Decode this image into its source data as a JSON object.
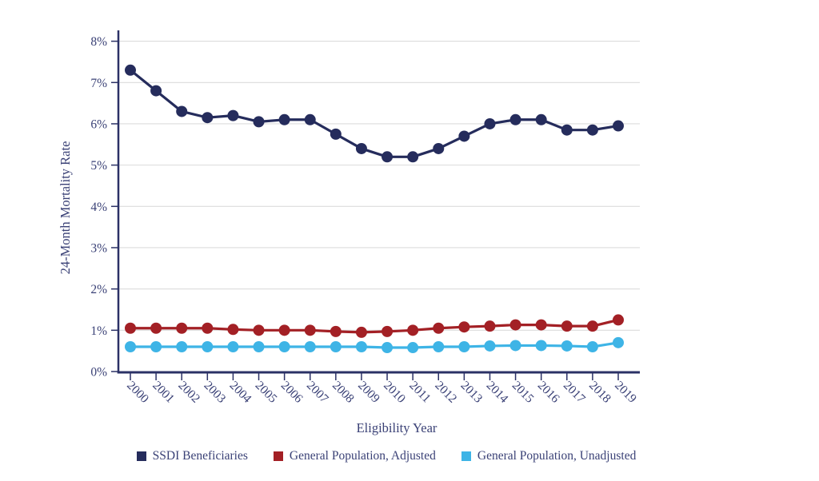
{
  "chart_data": {
    "type": "line",
    "title": "",
    "xlabel": "Eligibility Year",
    "ylabel": "24-Month Mortality Rate",
    "x": [
      "2000",
      "2001",
      "2002",
      "2003",
      "2004",
      "2005",
      "2006",
      "2007",
      "2008",
      "2009",
      "2010",
      "2011",
      "2012",
      "2013",
      "2014",
      "2015",
      "2016",
      "2017",
      "2018",
      "2019"
    ],
    "series": [
      {
        "name": "SSDI Beneficiaries",
        "color": "#252c5c",
        "values": [
          7.3,
          6.8,
          6.3,
          6.15,
          6.2,
          6.05,
          6.1,
          6.1,
          5.75,
          5.4,
          5.2,
          5.2,
          5.4,
          5.7,
          6.0,
          6.1,
          6.1,
          5.85,
          5.85,
          5.95
        ]
      },
      {
        "name": "General Population, Adjusted",
        "color": "#a32025",
        "values": [
          1.05,
          1.05,
          1.05,
          1.05,
          1.02,
          1.0,
          1.0,
          1.0,
          0.97,
          0.95,
          0.97,
          1.0,
          1.05,
          1.08,
          1.1,
          1.13,
          1.13,
          1.1,
          1.1,
          1.25
        ]
      },
      {
        "name": "General Population, Unadjusted",
        "color": "#3eb4e6",
        "values": [
          0.6,
          0.6,
          0.6,
          0.6,
          0.6,
          0.6,
          0.6,
          0.6,
          0.6,
          0.6,
          0.58,
          0.58,
          0.6,
          0.6,
          0.62,
          0.63,
          0.63,
          0.62,
          0.6,
          0.7
        ]
      }
    ],
    "ylim": [
      0,
      8
    ],
    "yticks": [
      0,
      1,
      2,
      3,
      4,
      5,
      6,
      7,
      8
    ],
    "ytick_labels": [
      "0%",
      "1%",
      "2%",
      "3%",
      "4%",
      "5%",
      "6%",
      "7%",
      "8%"
    ],
    "grid": true,
    "legend_position": "bottom",
    "x_tick_rotation_deg": 45
  },
  "colors": {
    "axis": "#2b3166",
    "grid": "#dcdcdc",
    "text": "#3a4176",
    "background": "#ffffff"
  }
}
